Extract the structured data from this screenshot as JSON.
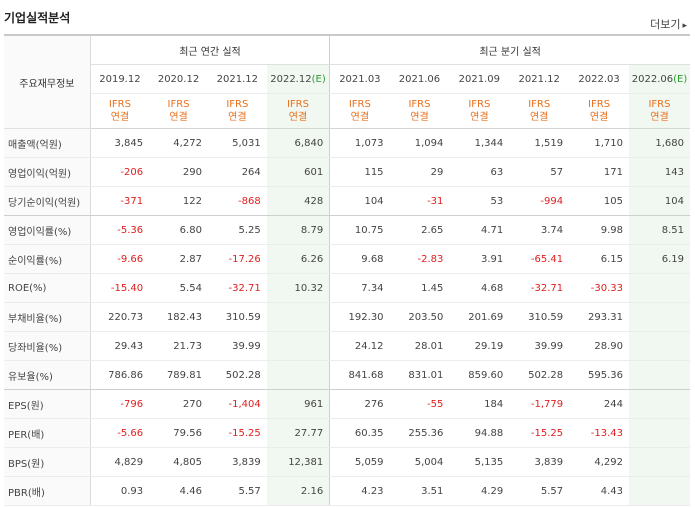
{
  "title": "기업실적분석",
  "more_label": "더보기",
  "more_arrow": "▸",
  "header": {
    "row_head": "주요재무정보",
    "group_annual": "최근 연간 실적",
    "group_quarter": "최근 분기 실적",
    "annual_periods": [
      "2019.12",
      "2020.12",
      "2021.12",
      "2022.12"
    ],
    "annual_est_marker": "(E)",
    "quarter_periods": [
      "2021.03",
      "2021.06",
      "2021.09",
      "2021.12",
      "2022.03",
      "2022.06"
    ],
    "quarter_est_marker": "(E)",
    "ifrs_line1": "IFRS",
    "ifrs_line2": "연결"
  },
  "rows": [
    {
      "label": "매출액(억원)",
      "annual": [
        "3,845",
        "4,272",
        "5,031",
        "6,840"
      ],
      "quarter": [
        "1,073",
        "1,094",
        "1,344",
        "1,519",
        "1,710",
        "1,680"
      ]
    },
    {
      "label": "영업이익(억원)",
      "annual": [
        "-206",
        "290",
        "264",
        "601"
      ],
      "quarter": [
        "115",
        "29",
        "63",
        "57",
        "171",
        "143"
      ]
    },
    {
      "label": "당기순이익(억원)",
      "annual": [
        "-371",
        "122",
        "-868",
        "428"
      ],
      "quarter": [
        "104",
        "-31",
        "53",
        "-994",
        "105",
        "104"
      ]
    },
    {
      "label": "영업이익률(%)",
      "annual": [
        "-5.36",
        "6.80",
        "5.25",
        "8.79"
      ],
      "quarter": [
        "10.75",
        "2.65",
        "4.71",
        "3.74",
        "9.98",
        "8.51"
      ]
    },
    {
      "label": "순이익률(%)",
      "annual": [
        "-9.66",
        "2.87",
        "-17.26",
        "6.26"
      ],
      "quarter": [
        "9.68",
        "-2.83",
        "3.91",
        "-65.41",
        "6.15",
        "6.19"
      ]
    },
    {
      "label": "ROE(%)",
      "annual": [
        "-15.40",
        "5.54",
        "-32.71",
        "10.32"
      ],
      "quarter": [
        "7.34",
        "1.45",
        "4.68",
        "-32.71",
        "-30.33",
        ""
      ]
    },
    {
      "label": "부채비율(%)",
      "annual": [
        "220.73",
        "182.43",
        "310.59",
        ""
      ],
      "quarter": [
        "192.30",
        "203.50",
        "201.69",
        "310.59",
        "293.31",
        ""
      ]
    },
    {
      "label": "당좌비율(%)",
      "annual": [
        "29.43",
        "21.73",
        "39.99",
        ""
      ],
      "quarter": [
        "24.12",
        "28.01",
        "29.19",
        "39.99",
        "28.90",
        ""
      ]
    },
    {
      "label": "유보율(%)",
      "annual": [
        "786.86",
        "789.81",
        "502.28",
        ""
      ],
      "quarter": [
        "841.68",
        "831.01",
        "859.60",
        "502.28",
        "595.36",
        ""
      ]
    },
    {
      "label": "EPS(원)",
      "annual": [
        "-796",
        "270",
        "-1,404",
        "961"
      ],
      "quarter": [
        "276",
        "-55",
        "184",
        "-1,779",
        "244",
        ""
      ]
    },
    {
      "label": "PER(배)",
      "annual": [
        "-5.66",
        "79.56",
        "-15.25",
        "27.77"
      ],
      "quarter": [
        "60.35",
        "255.36",
        "94.88",
        "-15.25",
        "-13.43",
        ""
      ]
    },
    {
      "label": "BPS(원)",
      "annual": [
        "4,829",
        "4,805",
        "3,839",
        "12,381"
      ],
      "quarter": [
        "5,059",
        "5,004",
        "5,135",
        "3,839",
        "4,292",
        ""
      ]
    },
    {
      "label": "PBR(배)",
      "annual": [
        "0.93",
        "4.46",
        "5.57",
        "2.16"
      ],
      "quarter": [
        "4.23",
        "3.51",
        "4.29",
        "5.57",
        "4.43",
        ""
      ]
    }
  ],
  "colors": {
    "negative": "#e02020",
    "ifrs": "#e86f1b",
    "estimate_bg": "#f1f8f1",
    "estimate_marker": "#2e9d2e"
  }
}
